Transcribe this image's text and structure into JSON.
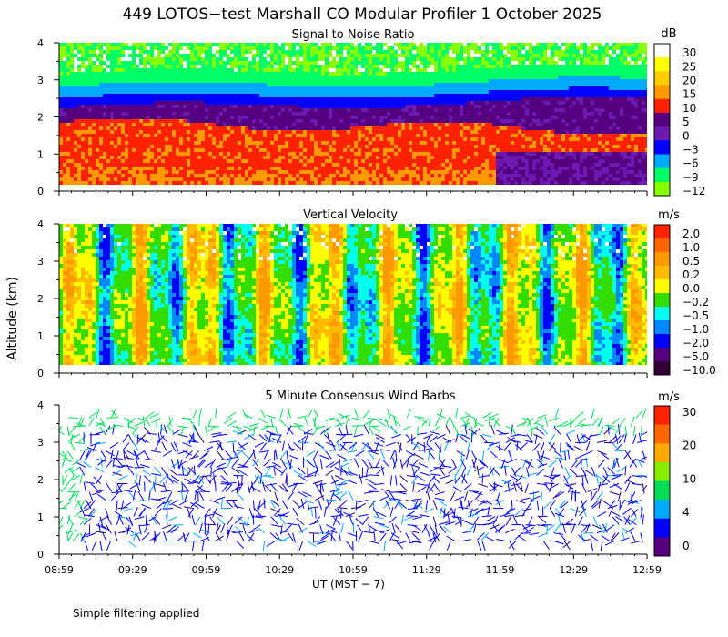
{
  "title": "449 LOTOS−test Marshall CO Modular Profiler  1 October 2025",
  "y_axis_label": "Altitude (km)",
  "x_axis_label": "UT  (MST − 7)",
  "footnote": "Simple filtering applied",
  "chart_data": [
    {
      "type": "heatmap",
      "title": "Signal to Noise Ratio",
      "unit": "dB",
      "ylim": [
        0,
        4
      ],
      "y_ticks": [
        "0",
        "1",
        "2",
        "3",
        "4"
      ],
      "x_ticks": [
        "08:59",
        "09:29",
        "09:59",
        "10:29",
        "10:59",
        "11:29",
        "11:59",
        "12:29",
        "12:59"
      ],
      "colorbar": {
        "labels": [
          "30",
          "25",
          "20",
          "15",
          "10",
          "5",
          "0",
          "−3",
          "−6",
          "−9",
          "−12"
        ],
        "colors": [
          "#ffffff",
          "#ffff00",
          "#ffcc00",
          "#ff9900",
          "#ff2200",
          "#55007f",
          "#6a1ab0",
          "#0000ff",
          "#00aaff",
          "#00ff66",
          "#88ff00"
        ]
      },
      "description_layers_km": {
        "surface_layer_top": 2.0,
        "boundary_layer_top": 2.3,
        "noise_floor": 3.2
      }
    },
    {
      "type": "heatmap",
      "title": "Vertical Velocity",
      "unit": "m/s",
      "ylim": [
        0,
        4
      ],
      "y_ticks": [
        "0",
        "1",
        "2",
        "3",
        "4"
      ],
      "colorbar": {
        "labels": [
          "2.0",
          "1.0",
          "0.5",
          "0.2",
          "0.0",
          "−0.2",
          "−0.5",
          "−1.0",
          "−2.0",
          "−5.0",
          "−10.0"
        ],
        "colors": [
          "#ff2200",
          "#ff6600",
          "#ff9900",
          "#ffbb00",
          "#ffff00",
          "#33dd00",
          "#00ffee",
          "#0088ff",
          "#0000ff",
          "#55007f",
          "#330033"
        ]
      }
    },
    {
      "type": "wind_barbs",
      "title": "5 Minute Consensus Wind Barbs",
      "unit": "m/s",
      "ylim": [
        0,
        4
      ],
      "y_ticks": [
        "0",
        "1",
        "2",
        "3",
        "4"
      ],
      "colorbar": {
        "labels": [
          "30",
          "20",
          "10",
          "4",
          "0"
        ],
        "colors": [
          "#ff2200",
          "#ff6600",
          "#ffaa00",
          "#88ee00",
          "#00dd55",
          "#00aaff",
          "#0000ff",
          "#55007f"
        ]
      }
    }
  ]
}
